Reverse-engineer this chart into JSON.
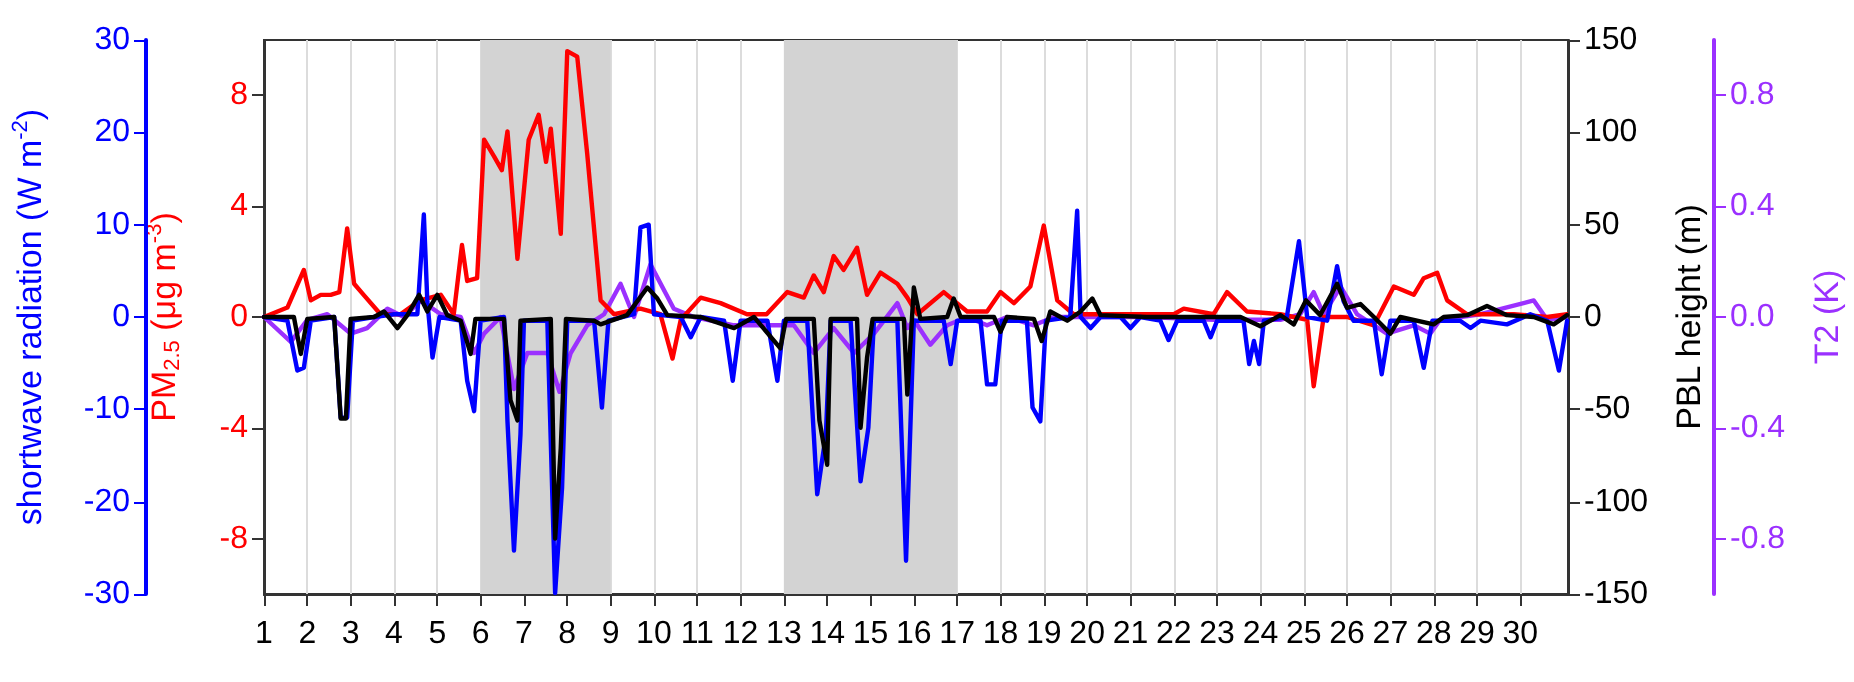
{
  "chart_data": [
    {
      "type": "line",
      "ylabel": "PM$_{2.5}$ (μg m$^{-3}$)",
      "y2label": "T2 (K)",
      "xlim": [
        1,
        31.1
      ],
      "xticks": [
        1,
        2,
        3,
        4,
        5,
        6,
        7,
        8,
        9,
        10,
        11,
        12,
        13,
        14,
        15,
        16,
        17,
        18,
        19,
        20,
        21,
        22,
        23,
        24,
        25,
        26,
        27,
        28,
        29,
        30
      ],
      "ylim": [
        -10,
        10
      ],
      "yticks": [
        -8,
        -4,
        0,
        4,
        8
      ],
      "y2lim": [
        -1,
        1
      ],
      "y2ticks": [
        -0.8,
        -0.4,
        {
          "value": 0,
          "label": "0.0"
        },
        0.4,
        0.8
      ],
      "grid": "x",
      "marker": "none",
      "line_style": "solid",
      "bands": [
        {
          "axis": "x",
          "from": 6,
          "to": 9,
          "color": "#d3d3d3"
        },
        {
          "axis": "x",
          "from": 13,
          "to": 17,
          "color": "#d3d3d3"
        }
      ],
      "series": [
        {
          "color": "#9b30ff",
          "axis": "y2",
          "x": [
            1,
            1.62,
            2,
            2.46,
            2.77,
            3,
            3.38,
            3.85,
            4.23,
            4.62,
            5.08,
            5.54,
            5.85,
            6.08,
            6.46,
            6.77,
            7.08,
            7.54,
            7.82,
            8.08,
            8.46,
            8.85,
            9.23,
            9.54,
            9.92,
            10.46,
            10.92,
            11.85,
            12.77,
            13.23,
            13.69,
            14.15,
            14.62,
            15.08,
            15.62,
            15.85,
            16,
            16.38,
            16.77,
            17.23,
            17.69,
            18.15,
            18.77,
            19.23,
            19.85,
            21.38,
            22.92,
            24.46,
            24.92,
            25.23,
            25.46,
            25.85,
            26.23,
            26.92,
            27.54,
            27.92,
            28.15,
            29.08,
            30.31,
            30.62,
            31.08
          ],
          "values": [
            0,
            -0.09,
            -0.01,
            0.01,
            -0.03,
            -0.06,
            -0.04,
            0.03,
            0,
            0.06,
            0.01,
            0,
            -0.13,
            -0.06,
            0,
            -0.26,
            -0.13,
            -0.13,
            -0.27,
            -0.13,
            -0.03,
            0.01,
            0.12,
            0,
            0.19,
            0.03,
            0,
            -0.03,
            -0.03,
            -0.03,
            -0.13,
            -0.04,
            -0.13,
            -0.06,
            0.05,
            -0.04,
            -0.01,
            -0.1,
            -0.03,
            0,
            -0.03,
            0,
            -0.03,
            0,
            0,
            0,
            -0.01,
            -0.01,
            0.01,
            0.09,
            0.01,
            0.11,
            0.01,
            -0.06,
            -0.03,
            -0.06,
            -0.01,
            0.01,
            0.06,
            -0.01,
            0
          ]
        },
        {
          "color": "#ff0000",
          "x": [
            1,
            1.54,
            1.92,
            2.08,
            2.31,
            2.54,
            2.74,
            2.92,
            3.08,
            3.3,
            3.69,
            4.15,
            4.6,
            5.08,
            5.38,
            5.57,
            5.69,
            5.92,
            6.08,
            6.31,
            6.49,
            6.62,
            6.85,
            7.11,
            7.34,
            7.51,
            7.62,
            7.85,
            8,
            8.23,
            8.46,
            8.77,
            9.08,
            9.69,
            10.15,
            10.43,
            10.62,
            11.08,
            11.54,
            12.15,
            12.6,
            13.08,
            13.46,
            13.69,
            13.92,
            14.15,
            14.38,
            14.69,
            14.92,
            15.23,
            15.62,
            15.85,
            16.08,
            16.69,
            16.92,
            17.23,
            17.69,
            18,
            18.31,
            18.69,
            19,
            19.31,
            19.69,
            20.6,
            22,
            22.23,
            22.92,
            23.23,
            23.69,
            24.46,
            25.08,
            25.23,
            25.46,
            26,
            26.62,
            27.08,
            27.54,
            27.77,
            28.08,
            28.31,
            28.77,
            29.85,
            30.62,
            31.08
          ],
          "values": [
            0,
            0.34,
            1.7,
            0.6,
            0.8,
            0.8,
            0.9,
            3.2,
            1.2,
            0.8,
            0.1,
            0.1,
            0.6,
            0.8,
            0.1,
            2.6,
            1.3,
            1.4,
            6.4,
            5.8,
            5.3,
            6.7,
            2.1,
            6.4,
            7.3,
            5.6,
            6.8,
            3,
            9.6,
            9.4,
            5.9,
            0.6,
            0.1,
            0.3,
            0.1,
            -1.5,
            -0.1,
            0.7,
            0.5,
            0.1,
            0.1,
            0.9,
            0.7,
            1.5,
            0.9,
            2.2,
            1.7,
            2.5,
            0.8,
            1.6,
            1.2,
            0.7,
            0.1,
            0.9,
            0.6,
            0.2,
            0.2,
            0.9,
            0.5,
            1.1,
            3.3,
            0.6,
            0.1,
            0.1,
            0.1,
            0.3,
            0.1,
            0.9,
            0.2,
            0.1,
            -0.1,
            -2.5,
            0,
            0,
            -0.3,
            1.1,
            0.8,
            1.4,
            1.6,
            0.6,
            0.1,
            0.1,
            0,
            0.1
          ]
        }
      ]
    },
    {
      "type": "line",
      "ylabel": "shortwave radiation (W m$^{-2}$)",
      "y2label": "PBL height (m)",
      "xlim": [
        1,
        31.1
      ],
      "xticks": [
        1,
        2,
        3,
        4,
        5,
        6,
        7,
        8,
        9,
        10,
        11,
        12,
        13,
        14,
        15,
        16,
        17,
        18,
        19,
        20,
        21,
        22,
        23,
        24,
        25,
        26,
        27,
        28,
        29,
        30
      ],
      "tick_labels": "y",
      "ylim": [
        -30,
        30
      ],
      "yticks": [
        -30,
        -20,
        -10,
        0,
        10,
        20,
        30
      ],
      "y2lim": [
        -150,
        150
      ],
      "y2ticks": [
        -150,
        -100,
        -50,
        0,
        50,
        100,
        150
      ],
      "marker": "none",
      "line_style": "solid",
      "series": [
        {
          "color": "#0000ff",
          "x": [
            1,
            1.54,
            1.77,
            1.92,
            2.08,
            2.62,
            2.77,
            2.92,
            3.05,
            3.54,
            4,
            4.54,
            4.69,
            4.77,
            4.89,
            5.05,
            5.54,
            5.69,
            5.85,
            6,
            6.54,
            6.62,
            6.77,
            6.92,
            7,
            7.54,
            7.72,
            7.88,
            8,
            8.62,
            8.8,
            8.95,
            9.54,
            9.69,
            9.88,
            10,
            10.62,
            10.85,
            11.08,
            11.62,
            11.82,
            12,
            12.62,
            12.85,
            13,
            13.54,
            13.77,
            13.97,
            14.08,
            14.54,
            14.77,
            14.95,
            15.08,
            15.62,
            15.82,
            16,
            16.69,
            16.85,
            17,
            17.54,
            17.69,
            17.88,
            18.03,
            18.61,
            18.74,
            18.92,
            19.05,
            19.61,
            19.77,
            19.85,
            20.08,
            20.31,
            20.77,
            21,
            21.23,
            21.69,
            21.88,
            22.08,
            22.69,
            22.85,
            23,
            23.61,
            23.74,
            23.85,
            23.97,
            24.08,
            24.61,
            24.89,
            25.08,
            25.54,
            25.77,
            25.92,
            26.15,
            26.62,
            26.8,
            27,
            27.54,
            27.77,
            27.97,
            28.61,
            28.85,
            29.08,
            29.69,
            30.23,
            30.62,
            30.89,
            31.08
          ],
          "values": [
            0,
            -0.4,
            -5.8,
            -5.5,
            -0.4,
            0,
            -10.9,
            -10.9,
            -0.4,
            0,
            0.3,
            0.3,
            11.1,
            1.7,
            -4.4,
            0,
            -0.4,
            -6.9,
            -10.2,
            -0.4,
            0,
            -11.3,
            -25.3,
            -12.7,
            -0.4,
            -0.4,
            -29.9,
            -18.5,
            -0.4,
            -0.4,
            -9.8,
            -0.4,
            0.3,
            9.7,
            10,
            0.3,
            0,
            -2.2,
            0,
            -0.4,
            -6.9,
            -0.4,
            -0.4,
            -6.9,
            -0.4,
            -0.4,
            -19.2,
            -12.7,
            -0.4,
            -0.4,
            -17.8,
            -12,
            -0.4,
            -0.4,
            -26.4,
            -0.4,
            -0.4,
            -5.1,
            -0.4,
            -0.4,
            -7.3,
            -7.3,
            -0.4,
            -0.4,
            -9.8,
            -11.3,
            -0.4,
            0,
            11.5,
            0,
            -1.2,
            0,
            0,
            -1.2,
            0,
            -0.4,
            -2.5,
            -0.4,
            -0.4,
            -2.2,
            -0.4,
            -0.4,
            -5.1,
            -2.6,
            -5.1,
            -0.4,
            0,
            8.2,
            0,
            -0.4,
            5.5,
            1.7,
            -0.4,
            -0.4,
            -6.2,
            -0.4,
            -0.4,
            -5.5,
            -0.4,
            -0.4,
            -1.2,
            -0.4,
            -0.8,
            0.3,
            -0.4,
            -5.8,
            -0.4
          ]
        },
        {
          "color": "#000000",
          "axis": "y2",
          "x": [
            1,
            1.69,
            1.85,
            2,
            2.62,
            2.77,
            2.89,
            3,
            3.54,
            3.77,
            4.08,
            4.31,
            4.58,
            4.77,
            5,
            5.23,
            5.54,
            5.77,
            5.88,
            6.54,
            6.69,
            6.85,
            6.92,
            7.62,
            7.72,
            7.85,
            7.97,
            8.62,
            8.77,
            9.38,
            9.85,
            10.08,
            10.31,
            11.08,
            11.85,
            12.31,
            12.92,
            13.05,
            13.69,
            13.82,
            14,
            14.08,
            14.69,
            14.77,
            14.92,
            15.05,
            15.77,
            15.85,
            16,
            16.15,
            16.77,
            16.92,
            17.08,
            17.85,
            18,
            18.15,
            18.77,
            18.95,
            19.15,
            19.54,
            19.85,
            20.12,
            20.31,
            21.38,
            22.92,
            23.54,
            24,
            24.46,
            24.77,
            25.05,
            25.38,
            25.77,
            26,
            26.31,
            26.62,
            27,
            27.23,
            28,
            28.23,
            28.77,
            29.23,
            29.69,
            30.31,
            30.77,
            31.08
          ],
          "values": [
            0,
            0,
            -20,
            -1,
            0,
            -55,
            -55,
            -1,
            0,
            3,
            -6,
            1,
            12,
            3,
            12,
            1,
            -2,
            -20,
            -1,
            -1,
            -45,
            -56,
            -2,
            -1,
            -120,
            -71,
            -1,
            -2,
            -4,
            1,
            16,
            10,
            1,
            0,
            -6,
            0,
            -17,
            -1,
            -1,
            -56,
            -80,
            -1,
            -1,
            -60,
            -22,
            -1,
            -1,
            -42,
            16,
            -1,
            0,
            10,
            0,
            0,
            -8,
            0,
            -1,
            -13,
            3,
            -2,
            3,
            10,
            1,
            0,
            0,
            0,
            -5,
            1,
            -4,
            9,
            1,
            18,
            5,
            7,
            0,
            -9,
            0,
            -4,
            0,
            1,
            6,
            1,
            0,
            -4,
            1
          ]
        }
      ]
    }
  ]
}
